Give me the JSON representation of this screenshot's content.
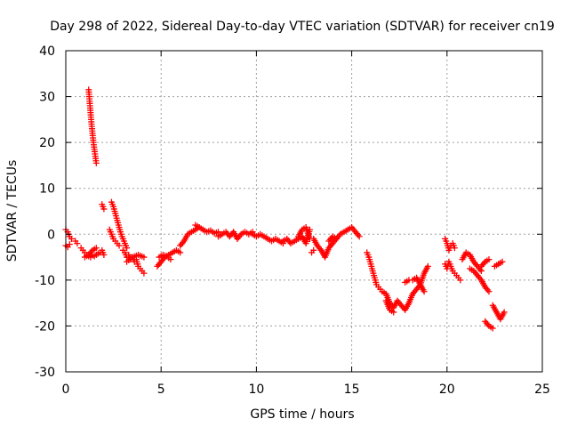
{
  "chart_data": {
    "type": "scatter",
    "title": "Day 298 of 2022, Sidereal Day-to-day VTEC variation (SDTVAR) for receiver cn19",
    "xlabel": "GPS time / hours",
    "ylabel": "SDTVAR / TECUs",
    "xlim": [
      0,
      25
    ],
    "ylim": [
      -30,
      40
    ],
    "xticks": [
      0,
      5,
      10,
      15,
      20,
      25
    ],
    "yticks": [
      -30,
      -20,
      -10,
      0,
      10,
      20,
      30,
      40
    ],
    "xtick_labels": [
      "0",
      "5",
      "10",
      "15",
      "20",
      "25"
    ],
    "ytick_labels": [
      "-30",
      "-20",
      "-10",
      "0",
      "10",
      "20",
      "30",
      "40"
    ],
    "grid": true,
    "marker": "+",
    "color": "#ff0000",
    "series": [
      {
        "name": "SDTVAR",
        "segments": [
          {
            "x": [
              0.0,
              0.1,
              0.2,
              0.3
            ],
            "y": [
              1.0,
              0.5,
              -0.5,
              -1.0
            ]
          },
          {
            "x": [
              0.0,
              0.1,
              0.2
            ],
            "y": [
              -2.5,
              -2.8,
              -2.2
            ]
          },
          {
            "x": [
              0.5,
              0.6
            ],
            "y": [
              -1.5,
              -2.0
            ]
          },
          {
            "x": [
              0.8,
              0.9,
              1.0,
              1.1,
              1.2,
              1.3,
              1.4,
              1.5,
              1.6,
              1.7,
              1.8
            ],
            "y": [
              -3.0,
              -3.5,
              -4.0,
              -4.5,
              -4.8,
              -5.0,
              -4.6,
              -4.8,
              -4.5,
              -4.2,
              -4.0
            ]
          },
          {
            "x": [
              1.0,
              1.2,
              1.4,
              1.6
            ],
            "y": [
              -5.0,
              -4.5,
              -3.5,
              -3.0
            ]
          },
          {
            "x": [
              1.2,
              1.25,
              1.3,
              1.35,
              1.4,
              1.45,
              1.5,
              1.55,
              1.6
            ],
            "y": [
              31.5,
              29.0,
              26.5,
              24.0,
              22.0,
              20.0,
              18.5,
              17.0,
              15.5
            ]
          },
          {
            "x": [
              1.9,
              2.0
            ],
            "y": [
              6.5,
              5.5
            ]
          },
          {
            "x": [
              1.9,
              2.0
            ],
            "y": [
              -3.5,
              -4.5
            ]
          },
          {
            "x": [
              2.4,
              2.5,
              2.6,
              2.7,
              2.8,
              2.9,
              3.0,
              3.1,
              3.2
            ],
            "y": [
              7.0,
              6.0,
              4.5,
              3.0,
              1.5,
              0.0,
              -1.0,
              -2.0,
              -3.0
            ]
          },
          {
            "x": [
              2.3,
              2.4,
              2.5,
              2.6,
              2.7,
              2.8
            ],
            "y": [
              1.0,
              0.0,
              -1.0,
              -1.5,
              -2.0,
              -2.5
            ]
          },
          {
            "x": [
              3.0,
              3.1,
              3.2,
              3.3,
              3.4,
              3.5,
              3.6,
              3.7,
              3.8,
              3.9,
              4.0,
              4.1
            ],
            "y": [
              -3.5,
              -4.0,
              -5.0,
              -4.5,
              -5.5,
              -5.0,
              -6.0,
              -5.5,
              -7.0,
              -7.5,
              -8.0,
              -8.5
            ]
          },
          {
            "x": [
              3.2,
              3.5,
              3.8,
              4.1
            ],
            "y": [
              -6.0,
              -5.0,
              -4.5,
              -5.0
            ]
          },
          {
            "x": [
              4.8,
              5.0,
              5.2,
              5.4,
              5.6,
              5.8,
              6.0
            ],
            "y": [
              -7.0,
              -6.0,
              -5.0,
              -4.5,
              -4.0,
              -3.5,
              -4.0
            ]
          },
          {
            "x": [
              4.9,
              5.1,
              5.3,
              5.5
            ],
            "y": [
              -5.0,
              -4.5,
              -4.8,
              -5.5
            ]
          },
          {
            "x": [
              6.0,
              6.2,
              6.4,
              6.6,
              6.8,
              7.0,
              7.2,
              7.4,
              7.6,
              7.8,
              8.0
            ],
            "y": [
              -2.5,
              -1.5,
              0.0,
              0.5,
              1.0,
              1.5,
              1.0,
              0.5,
              0.8,
              0.2,
              0.5
            ]
          },
          {
            "x": [
              6.8,
              7.0
            ],
            "y": [
              2.0,
              1.5
            ]
          },
          {
            "x": [
              8.0,
              8.2,
              8.4,
              8.6,
              8.8,
              9.0,
              9.2,
              9.4,
              9.6,
              9.8
            ],
            "y": [
              -0.5,
              0.0,
              0.5,
              -0.5,
              0.5,
              -1.0,
              0.0,
              0.5,
              0.0,
              0.5
            ]
          },
          {
            "x": [
              9.8,
              10.0,
              10.2,
              10.4,
              10.6,
              10.8,
              11.0,
              11.2,
              11.4
            ],
            "y": [
              0.0,
              -0.5,
              0.0,
              -0.5,
              -1.0,
              -1.5,
              -1.0,
              -1.5,
              -2.0
            ]
          },
          {
            "x": [
              11.4,
              11.6,
              11.8,
              12.0,
              12.2,
              12.4,
              12.6,
              12.8
            ],
            "y": [
              -1.5,
              -1.0,
              -2.0,
              -1.5,
              -1.0,
              -0.5,
              -2.0,
              1.0
            ]
          },
          {
            "x": [
              12.2,
              12.4,
              12.6,
              12.8
            ],
            "y": [
              -0.5,
              1.0,
              1.5,
              -1.0
            ]
          },
          {
            "x": [
              12.9,
              13.0
            ],
            "y": [
              -4.0,
              -3.5
            ]
          },
          {
            "x": [
              13.0,
              13.2,
              13.4,
              13.6,
              13.8,
              14.0,
              14.2
            ],
            "y": [
              -1.0,
              -2.5,
              -3.5,
              -5.0,
              -3.0,
              -2.0,
              -1.0
            ]
          },
          {
            "x": [
              13.8,
              14.0,
              14.2,
              14.4,
              14.6,
              14.8,
              15.0,
              15.2,
              15.4
            ],
            "y": [
              -1.5,
              -0.5,
              -1.0,
              0.0,
              0.5,
              1.0,
              1.5,
              0.5,
              -0.5
            ]
          },
          {
            "x": [
              15.8,
              15.9,
              16.0,
              16.1,
              16.2,
              16.3,
              16.4,
              16.5
            ],
            "y": [
              -4.0,
              -5.0,
              -6.5,
              -8.0,
              -9.5,
              -11.0,
              -11.5,
              -12.0
            ]
          },
          {
            "x": [
              16.6,
              16.8,
              17.0,
              17.2,
              17.4,
              17.6,
              17.8,
              18.0
            ],
            "y": [
              -12.5,
              -13.0,
              -15.0,
              -16.0,
              -14.5,
              -15.5,
              -16.5,
              -15.0
            ]
          },
          {
            "x": [
              16.8,
              17.0,
              17.2
            ],
            "y": [
              -14.5,
              -16.5,
              -17.0
            ]
          },
          {
            "x": [
              17.8,
              18.0
            ],
            "y": [
              -10.5,
              -10.0
            ]
          },
          {
            "x": [
              18.0,
              18.2,
              18.4,
              18.6,
              18.8,
              19.0
            ],
            "y": [
              -15.0,
              -13.0,
              -12.0,
              -11.0,
              -8.5,
              -7.0
            ]
          },
          {
            "x": [
              18.2,
              18.4,
              18.6,
              18.8
            ],
            "y": [
              -10.0,
              -9.5,
              -11.0,
              -12.5
            ]
          },
          {
            "x": [
              19.9,
              20.0,
              20.1,
              20.2,
              20.3,
              20.4
            ],
            "y": [
              -1.0,
              -2.0,
              -3.5,
              -2.5,
              -2.0,
              -3.0
            ]
          },
          {
            "x": [
              19.9,
              20.0,
              20.1,
              20.2,
              20.3,
              20.4,
              20.5,
              20.6,
              20.7
            ],
            "y": [
              -6.5,
              -7.5,
              -6.0,
              -7.0,
              -8.0,
              -8.5,
              -9.0,
              -9.5,
              -10.0
            ]
          },
          {
            "x": [
              20.8,
              21.0,
              21.2,
              21.4,
              21.6,
              21.8
            ],
            "y": [
              -5.5,
              -4.0,
              -4.5,
              -6.0,
              -7.0,
              -8.0
            ]
          },
          {
            "x": [
              21.2,
              21.4,
              21.6,
              21.8,
              22.0,
              22.2
            ],
            "y": [
              -7.5,
              -8.0,
              -9.0,
              -10.0,
              -11.5,
              -12.5
            ]
          },
          {
            "x": [
              21.8,
              22.0,
              22.2
            ],
            "y": [
              -7.0,
              -6.0,
              -5.5
            ]
          },
          {
            "x": [
              22.0,
              22.2,
              22.4
            ],
            "y": [
              -19.0,
              -20.0,
              -20.5
            ]
          },
          {
            "x": [
              22.4,
              22.6,
              22.8,
              23.0
            ],
            "y": [
              -15.5,
              -17.0,
              -18.5,
              -17.0
            ]
          },
          {
            "x": [
              22.5,
              22.7,
              22.9
            ],
            "y": [
              -7.0,
              -6.5,
              -6.0
            ]
          }
        ]
      }
    ]
  }
}
